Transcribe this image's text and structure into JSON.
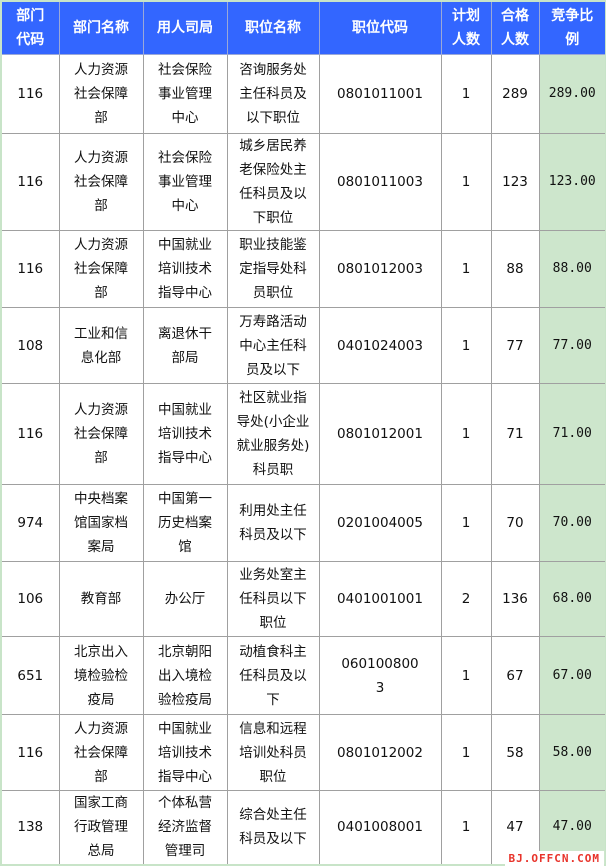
{
  "headers": [
    "部门\n代码",
    "部门名称",
    "用人司局",
    "职位名称",
    "职位代码",
    "计划\n人数",
    "合格\n人数",
    "竞争比\n例"
  ],
  "rows": [
    [
      "116",
      "人力资源\n社会保障\n部",
      "社会保险\n事业管理\n中心",
      "咨询服务处\n主任科员及\n以下职位",
      "0801011001",
      "1",
      "289",
      "289.00"
    ],
    [
      "116",
      "人力资源\n社会保障\n部",
      "社会保险\n事业管理\n中心",
      "城乡居民养\n老保险处主\n任科员及以\n下职位",
      "0801011003",
      "1",
      "123",
      "123.00"
    ],
    [
      "116",
      "人力资源\n社会保障\n部",
      "中国就业\n培训技术\n指导中心",
      "职业技能鉴\n定指导处科\n员职位",
      "0801012003",
      "1",
      "88",
      "88.00"
    ],
    [
      "108",
      "工业和信\n息化部",
      "离退休干\n部局",
      "万寿路活动\n中心主任科\n员及以下",
      "0401024003",
      "1",
      "77",
      "77.00"
    ],
    [
      "116",
      "人力资源\n社会保障\n部",
      "中国就业\n培训技术\n指导中心",
      "社区就业指\n导处(小企业\n就业服务处)\n科员职",
      "0801012001",
      "1",
      "71",
      "71.00"
    ],
    [
      "974",
      "中央档案\n馆国家档\n案局",
      "中国第一\n历史档案\n馆",
      "利用处主任\n科员及以下",
      "0201004005",
      "1",
      "70",
      "70.00"
    ],
    [
      "106",
      "教育部",
      "办公厅",
      "业务处室主\n任科员以下\n职位",
      "0401001001",
      "2",
      "136",
      "68.00"
    ],
    [
      "651",
      "北京出入\n境检验检\n疫局",
      "北京朝阳\n出入境检\n验检疫局",
      "动植食科主\n任科员及以\n下",
      "060100800\n3",
      "1",
      "67",
      "67.00"
    ],
    [
      "116",
      "人力资源\n社会保障\n部",
      "中国就业\n培训技术\n指导中心",
      "信息和远程\n培训处科员\n职位",
      "0801012002",
      "1",
      "58",
      "58.00"
    ],
    [
      "138",
      "国家工商\n行政管理\n总局",
      "个体私营\n经济监督\n管理司",
      "综合处主任\n科员及以下",
      "0401008001",
      "1",
      "47",
      "47.00"
    ]
  ],
  "watermark": "BJ.OFFCN.COM",
  "colors": {
    "header_bg": "#3366ff",
    "ratio_bg": "#cde6cc"
  }
}
